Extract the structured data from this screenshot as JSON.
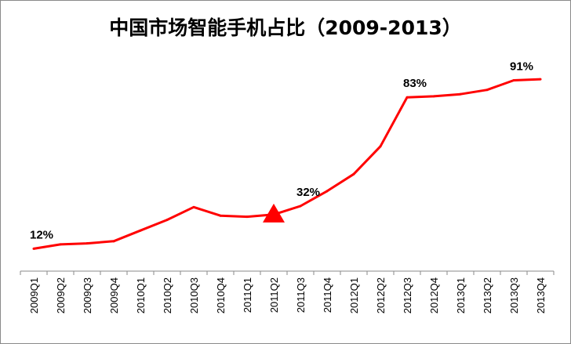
{
  "chart_data": {
    "type": "line",
    "title": "中国市场智能手机占比（2009-2013）",
    "xlabel": "",
    "ylabel": "",
    "ylim": [
      0,
      100
    ],
    "grid": false,
    "legend": "none",
    "categories": [
      "2009Q1",
      "2009Q2",
      "2009Q3",
      "2009Q4",
      "2010Q1",
      "2010Q2",
      "2010Q3",
      "2010Q4",
      "2011Q1",
      "2011Q2",
      "2011Q3",
      "2011Q4",
      "2012Q1",
      "2012Q2",
      "2012Q3",
      "2012Q4",
      "2013Q1",
      "2013Q2",
      "2013Q3",
      "2013Q4"
    ],
    "series": [
      {
        "color": "#ff0000",
        "values": [
          12,
          14,
          14.5,
          15.5,
          20.5,
          25.5,
          31.5,
          27.5,
          27,
          28,
          32,
          39,
          47,
          60,
          83,
          83.5,
          84.5,
          86.5,
          91,
          91.5
        ]
      }
    ],
    "data_labels": [
      {
        "index": 0,
        "text": "12%"
      },
      {
        "index": 10,
        "text": "32%"
      },
      {
        "index": 14,
        "text": "83%"
      },
      {
        "index": 18,
        "text": "91%"
      }
    ],
    "marker": {
      "index": 9,
      "shape": "triangle",
      "color": "#ff0000"
    }
  }
}
